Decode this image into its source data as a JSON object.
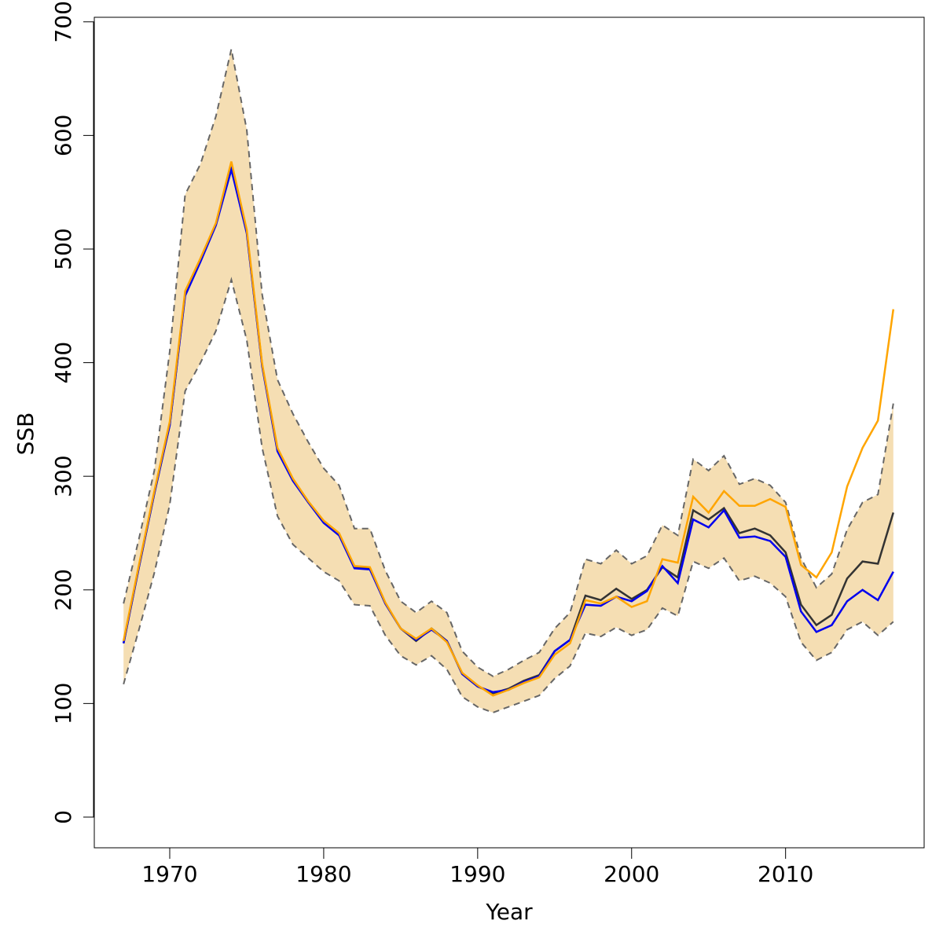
{
  "chart_data": {
    "type": "line",
    "xlabel": "Year",
    "ylabel": "SSB",
    "x": [
      1967,
      1968,
      1969,
      1970,
      1971,
      1972,
      1973,
      1974,
      1975,
      1976,
      1977,
      1978,
      1979,
      1980,
      1981,
      1982,
      1983,
      1984,
      1985,
      1986,
      1987,
      1988,
      1989,
      1990,
      1991,
      1992,
      1993,
      1994,
      1995,
      1996,
      1997,
      1998,
      1999,
      2000,
      2001,
      2002,
      2003,
      2004,
      2005,
      2006,
      2007,
      2008,
      2009,
      2010,
      2011,
      2012,
      2013,
      2014,
      2015,
      2016,
      2017
    ],
    "band": {
      "color": "#f5deb3",
      "edge_color": "#666666",
      "upper": [
        188,
        245,
        305,
        410,
        548,
        575,
        617,
        676,
        605,
        460,
        385,
        355,
        330,
        307,
        292,
        254,
        254,
        217,
        190,
        180,
        190,
        180,
        146,
        132,
        124,
        130,
        138,
        145,
        166,
        180,
        227,
        223,
        235,
        223,
        230,
        257,
        248,
        315,
        305,
        318,
        293,
        298,
        292,
        277,
        228,
        202,
        214,
        253,
        277,
        284,
        364
      ],
      "lower": [
        117,
        165,
        215,
        275,
        375,
        400,
        428,
        473,
        420,
        325,
        265,
        240,
        228,
        216,
        208,
        187,
        186,
        160,
        142,
        134,
        142,
        130,
        106,
        97,
        92,
        97,
        102,
        107,
        122,
        133,
        162,
        159,
        167,
        160,
        165,
        184,
        177,
        225,
        219,
        228,
        208,
        212,
        206,
        194,
        154,
        138,
        145,
        165,
        172,
        160,
        172
      ]
    },
    "series": [
      {
        "color": "#333333",
        "values": [
          153,
          220,
          285,
          345,
          460,
          490,
          522,
          572,
          515,
          398,
          323,
          297,
          277,
          260,
          249,
          220,
          219,
          188,
          166,
          155,
          166,
          155,
          126,
          115,
          109,
          113,
          120,
          125,
          146,
          156,
          195,
          191,
          201,
          192,
          200,
          220,
          211,
          270,
          262,
          272,
          250,
          254,
          248,
          233,
          187,
          169,
          178,
          210,
          225,
          223,
          268
        ]
      },
      {
        "color": "#0000ee",
        "values": [
          153,
          220,
          285,
          345,
          459,
          489,
          521,
          570,
          514,
          397,
          322,
          296,
          277,
          259,
          248,
          219,
          218,
          188,
          166,
          156,
          165,
          155,
          126,
          115,
          110,
          112,
          119,
          124,
          146,
          156,
          187,
          186,
          194,
          190,
          199,
          221,
          206,
          262,
          255,
          270,
          246,
          247,
          243,
          229,
          181,
          163,
          169,
          190,
          200,
          191,
          216
        ]
      },
      {
        "color": "#ffa500",
        "values": [
          155,
          222,
          287,
          348,
          463,
          492,
          523,
          577,
          517,
          399,
          325,
          298,
          278,
          261,
          250,
          221,
          220,
          189,
          166,
          157,
          166,
          154,
          127,
          116,
          107,
          112,
          118,
          123,
          143,
          153,
          191,
          188,
          194,
          185,
          190,
          227,
          224,
          282,
          268,
          287,
          274,
          274,
          280,
          273,
          222,
          211,
          233,
          291,
          325,
          349,
          447
        ]
      }
    ],
    "xlim": [
      1965.1,
      2019.0
    ],
    "ylim": [
      -27,
      704
    ],
    "xticks": [
      1970,
      1980,
      1990,
      2000,
      2010
    ],
    "yticks": [
      0,
      100,
      200,
      300,
      400,
      500,
      600,
      700
    ]
  }
}
